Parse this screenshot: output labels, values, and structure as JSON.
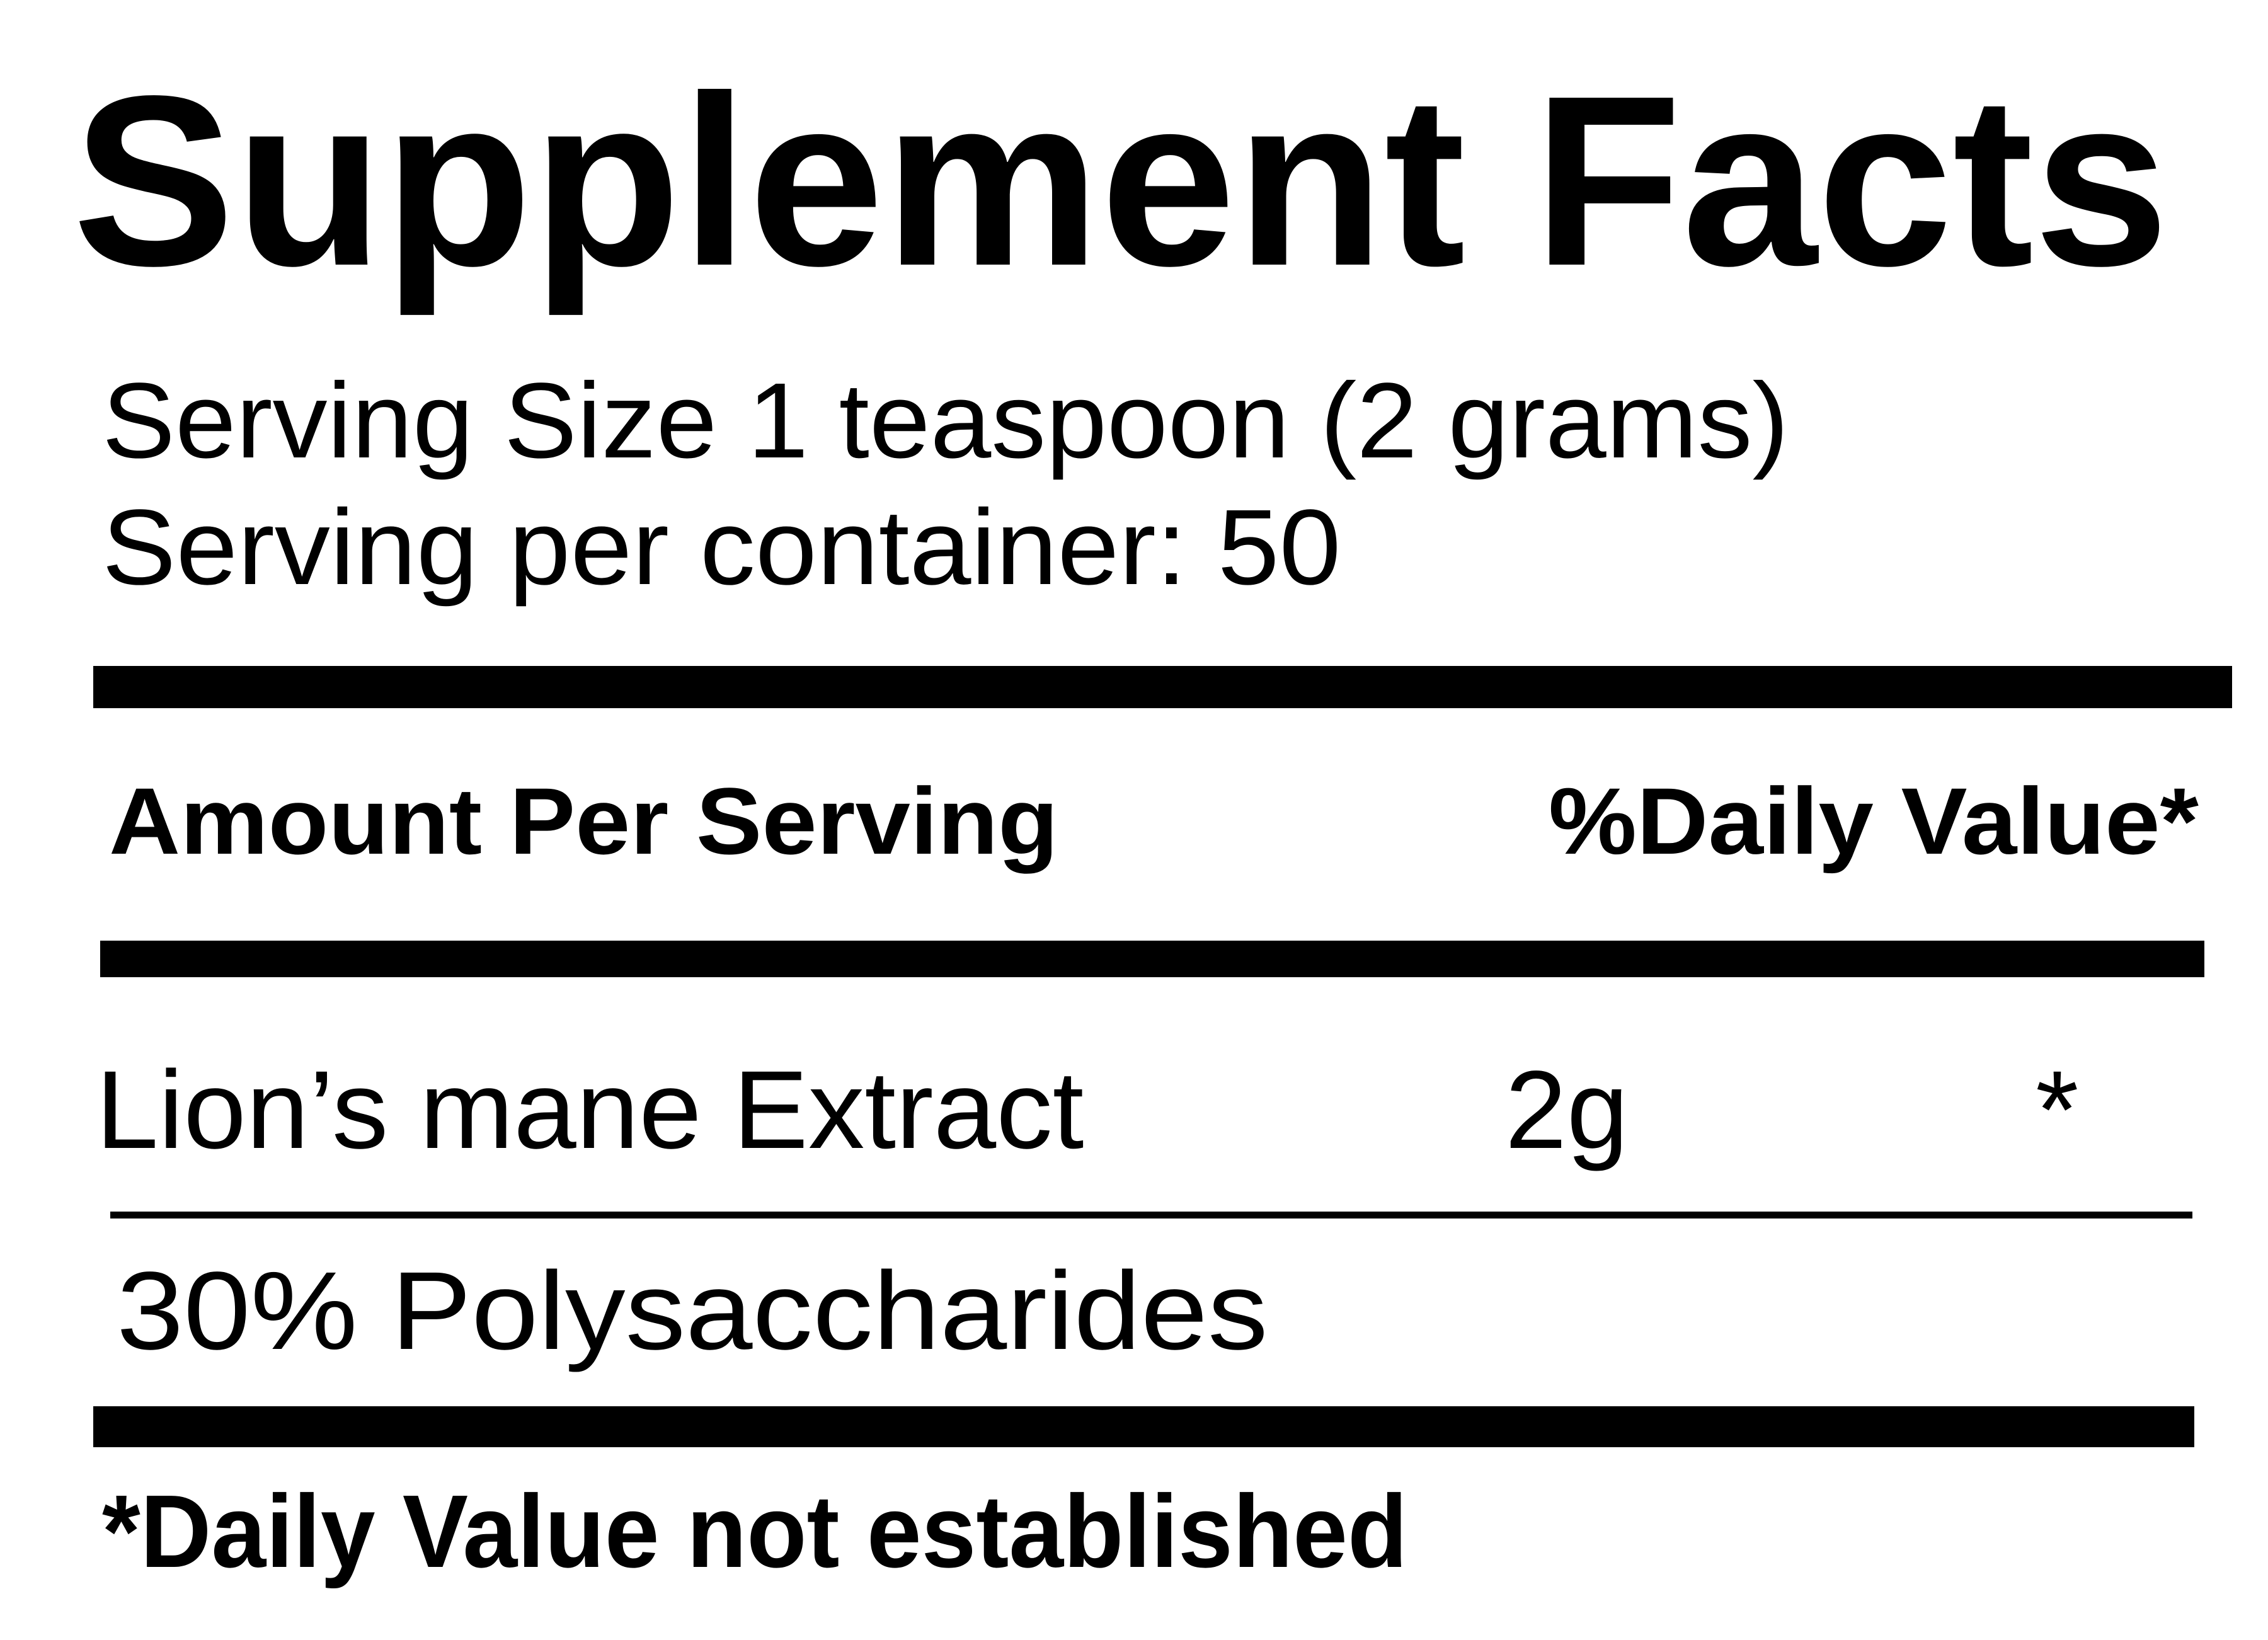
{
  "label": {
    "title": "Supplement Facts",
    "serving_size": "Serving Size 1 teaspoon (2 grams)",
    "servings_per_container": "Serving per container: 50",
    "header": {
      "amount_per_serving": "Amount Per Serving",
      "daily_value": "%Daily Value*"
    },
    "ingredients": [
      {
        "name": "Lion’s mane Extract",
        "amount": "2g",
        "daily_value": "*"
      }
    ],
    "sub_ingredient": "30% Polysaccharides",
    "footnote": "*Daily Value not established"
  },
  "colors": {
    "text": "#000000",
    "background": "#ffffff"
  }
}
